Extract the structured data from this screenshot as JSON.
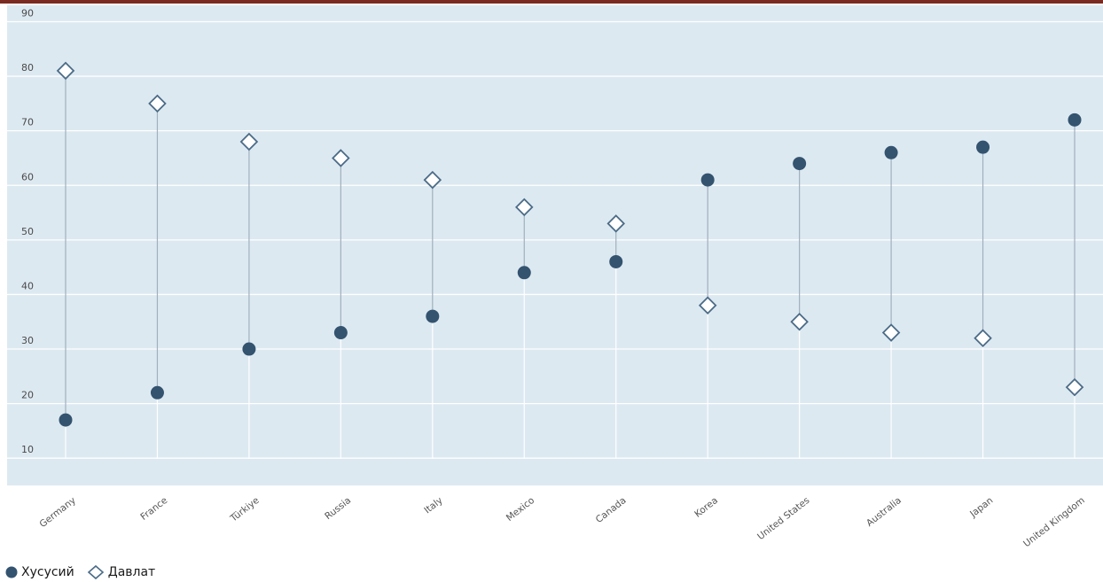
{
  "colors": {
    "plot_bg": "#dde9f1",
    "gridline": "#ffffff",
    "connector": "#9fb0bd",
    "marker": "#33536f",
    "marker_outline": "#4b6b87"
  },
  "chart_data": {
    "type": "dumbbell",
    "title": "",
    "xlabel": "",
    "ylabel": "",
    "ylim": [
      5,
      93
    ],
    "yticks": [
      10,
      20,
      30,
      40,
      50,
      60,
      70,
      80,
      90
    ],
    "grid": true,
    "legend_position": "bottom-left",
    "categories": [
      "Germany",
      "France",
      "Türkiye",
      "Russia",
      "Italy",
      "Mexico",
      "Canada",
      "Korea",
      "United States",
      "Australia",
      "Japan",
      "United Kingdom"
    ],
    "series": [
      {
        "name": "Хусусий",
        "marker": "filled-circle",
        "values": [
          17,
          22,
          30,
          33,
          36,
          44,
          46,
          61,
          64,
          66,
          67,
          72
        ]
      },
      {
        "name": "Давлат",
        "marker": "hollow-diamond",
        "values": [
          81,
          75,
          68,
          65,
          61,
          56,
          53,
          38,
          35,
          33,
          32,
          23
        ]
      }
    ]
  },
  "legend": {
    "private_label": "Хусусий",
    "public_label": "Давлат"
  }
}
